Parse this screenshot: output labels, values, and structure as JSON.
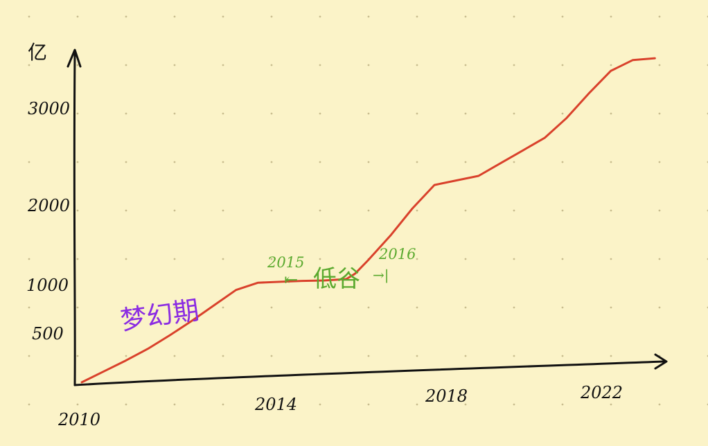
{
  "chart_data": {
    "type": "line",
    "title": "",
    "xlabel": "",
    "ylabel": "亿",
    "xlim": [
      2010,
      2023.2
    ],
    "ylim": [
      0,
      3550
    ],
    "x_ticks": [
      "2010",
      "2014",
      "2018",
      "2022"
    ],
    "y_ticks": [
      "500",
      "1000",
      "2000",
      "3000"
    ],
    "grid": "dotted",
    "series": [
      {
        "color": "#d9412b",
        "x": [
          2010,
          2010.5,
          2011,
          2011.5,
          2012,
          2012.5,
          2013,
          2013.5,
          2014,
          2014.5,
          2015,
          2015.5,
          2016,
          2016.2,
          2016.5,
          2017,
          2017.5,
          2018,
          2018.5,
          2019,
          2019.5,
          2020,
          2020.5,
          2021,
          2021.5,
          2022,
          2022.5,
          2023
        ],
        "y": [
          0,
          120,
          240,
          370,
          520,
          680,
          850,
          1020,
          1100,
          1110,
          1120,
          1125,
          1140,
          1200,
          1350,
          1620,
          1920,
          2180,
          2230,
          2280,
          2420,
          2560,
          2700,
          2920,
          3190,
          3440,
          3560,
          3580
        ]
      }
    ],
    "annotations": {
      "phase_label": "梦幻期",
      "start_year": "2015",
      "end_year": "2016",
      "trough_label": "低谷",
      "trough_start_arrow": "⇤",
      "trough_end_arrow": "→|",
      "phase_color": "#8a2be2",
      "trough_color": "#5aa92e"
    }
  }
}
